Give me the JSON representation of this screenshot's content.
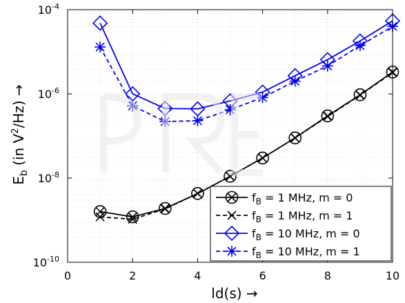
{
  "chart_data": {
    "type": "line",
    "xlabel": "ld(s) →",
    "ylabel_prefix": "E",
    "ylabel_sub": "b",
    "ylabel_mid": " (in V",
    "ylabel_sup": "2",
    "ylabel_suffix": "/Hz) →",
    "xlim": [
      0,
      10
    ],
    "ylim": [
      1e-10,
      0.0001
    ],
    "yscale": "log",
    "grid": true,
    "x_ticks": [
      0,
      2,
      4,
      6,
      8,
      10
    ],
    "x_tick_labels": [
      "0",
      "2",
      "4",
      "6",
      "8",
      "10"
    ],
    "y_ticks": [
      1e-10,
      1e-08,
      1e-06,
      0.0001
    ],
    "y_tick_base": "10",
    "y_tick_exps": [
      "-10",
      "-8",
      "-6",
      "-4"
    ],
    "legend_position": "bottom-right",
    "series": [
      {
        "name": "f_B = 1 MHz, m = 0",
        "legend": {
          "f": "f",
          "sub": "B",
          "rest": " =    1 MHz, m = 0"
        },
        "color": "#000000",
        "dash": "solid",
        "marker": "circle-x",
        "x": [
          1,
          2,
          3,
          4,
          5,
          6,
          7,
          8,
          9,
          10
        ],
        "y": [
          1.6e-09,
          1.2e-09,
          1.9e-09,
          4.3e-09,
          1.1e-08,
          3e-08,
          9e-08,
          3e-07,
          9.5e-07,
          3.3e-06
        ]
      },
      {
        "name": "f_B = 1 MHz, m = 1",
        "legend": {
          "f": "f",
          "sub": "B",
          "rest": " =    1 MHz, m = 1"
        },
        "color": "#000000",
        "dash": "dashed",
        "marker": "x",
        "x": [
          1,
          2,
          3,
          4,
          5,
          6,
          7,
          8,
          9,
          10
        ],
        "y": [
          1.2e-09,
          1.05e-09,
          1.85e-09,
          4.3e-09,
          1.1e-08,
          3e-08,
          9e-08,
          2.9e-07,
          9.3e-07,
          3.2e-06
        ]
      },
      {
        "name": "f_B = 10 MHz, m = 0",
        "legend": {
          "f": "f",
          "sub": "B",
          "rest": " = 10 MHz, m = 0"
        },
        "color": "#0000ee",
        "dash": "solid",
        "marker": "diamond",
        "x": [
          1,
          2,
          3,
          4,
          5,
          6,
          7,
          8,
          9,
          10
        ],
        "y": [
          4.8e-05,
          1e-06,
          4.5e-07,
          4.4e-07,
          6.8e-07,
          1.1e-06,
          2.7e-06,
          6.5e-06,
          1.8e-05,
          5.4e-05
        ]
      },
      {
        "name": "f_B = 10 MHz, m = 1",
        "legend": {
          "f": "f",
          "sub": "B",
          "rest": " = 10 MHz, m = 1"
        },
        "color": "#0000ee",
        "dash": "dashed",
        "marker": "asterisk",
        "x": [
          1,
          2,
          3,
          4,
          5,
          6,
          7,
          8,
          9,
          10
        ],
        "y": [
          1.3e-05,
          5.2e-07,
          2.2e-07,
          2.3e-07,
          4.2e-07,
          8.2e-07,
          2e-06,
          4.6e-06,
          1.4e-05,
          4e-05
        ]
      }
    ]
  }
}
